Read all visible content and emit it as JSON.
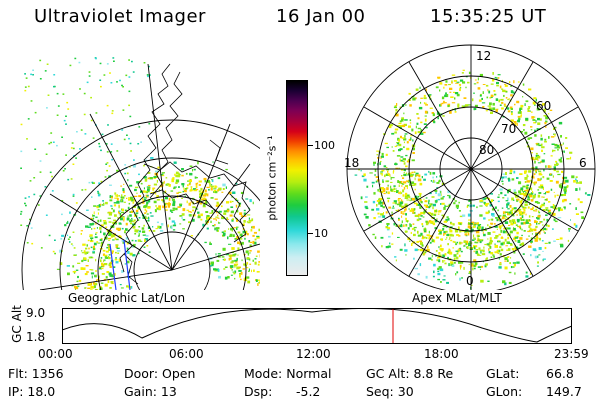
{
  "header": {
    "instrument": "Ultraviolet Imager",
    "date": "16 Jan 00",
    "time": "15:35:25 UT"
  },
  "geo_panel": {
    "label": "Geographic Lat/Lon"
  },
  "apex_panel": {
    "label": "Apex MLat/MLT",
    "lat_labels": [
      "80",
      "70",
      "60"
    ],
    "mlt_labels": [
      "12",
      "18",
      "6",
      "0"
    ]
  },
  "colorbar": {
    "unit_label": "photon cm⁻²s⁻¹",
    "ticks": [
      "100",
      "10"
    ],
    "colors": [
      "#000000",
      "#1a0033",
      "#4a0050",
      "#7a0055",
      "#a8003a",
      "#d4001a",
      "#f03c00",
      "#ff8a00",
      "#ffc400",
      "#f2f000",
      "#b6ee10",
      "#5fdc1c",
      "#1fcc40",
      "#10c890",
      "#2fd8d8",
      "#8ae8ec",
      "#cdeef2",
      "#ececec"
    ]
  },
  "timeline": {
    "ylabel": "GC Alt",
    "y_max": "9.0",
    "y_min": "1.8",
    "x_ticks": [
      "00:00",
      "06:00",
      "12:00",
      "18:00",
      "23:59"
    ],
    "current_time_fraction": 0.649
  },
  "info": {
    "row1": [
      "Flt:  1356",
      "Door:  Open",
      "Mode:  Normal",
      "GC Alt:  8.8 Re",
      "GLat:",
      "66.8"
    ],
    "row2": [
      "IP:  18.0",
      "Gain:  13",
      "Dsp:",
      "-5.2",
      "Seq:  30",
      "GLon:",
      "149.7"
    ]
  }
}
